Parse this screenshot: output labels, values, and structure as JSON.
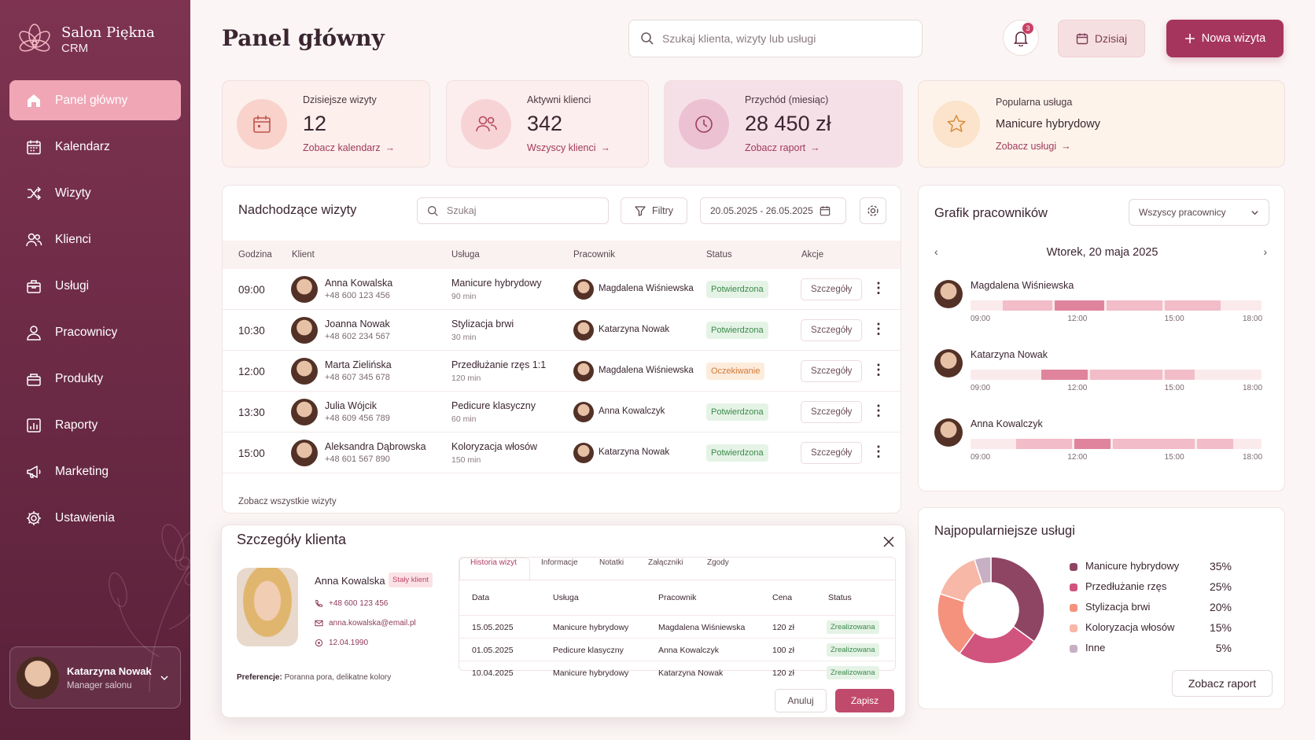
{
  "app": {
    "name": "Salon Piękna",
    "sub": "CRM"
  },
  "nav": [
    {
      "label": "Panel główny",
      "icon": "home-icon",
      "active": true
    },
    {
      "label": "Kalendarz",
      "icon": "calendar-icon"
    },
    {
      "label": "Wizyty",
      "icon": "shuffle-icon"
    },
    {
      "label": "Klienci",
      "icon": "users-icon"
    },
    {
      "label": "Usługi",
      "icon": "box-icon"
    },
    {
      "label": "Pracownicy",
      "icon": "user-icon"
    },
    {
      "label": "Produkty",
      "icon": "package-icon"
    },
    {
      "label": "Raporty",
      "icon": "chart-icon"
    },
    {
      "label": "Marketing",
      "icon": "megaphone-icon"
    },
    {
      "label": "Ustawienia",
      "icon": "gear-icon"
    }
  ],
  "user": {
    "name": "Katarzyna Nowak",
    "role": "Manager salonu"
  },
  "header": {
    "title": "Panel główny",
    "search_placeholder": "Szukaj klienta, wizyty lub usługi",
    "notifications": "3",
    "today_label": "Dzisiaj",
    "new_visit_label": "Nowa wizyta"
  },
  "kpis": [
    {
      "label": "Dzisiejsze wizyty",
      "value": "12",
      "link": "Zobacz kalendarz",
      "icon": "calendar-icon"
    },
    {
      "label": "Aktywni klienci",
      "value": "342",
      "link": "Wszyscy klienci",
      "icon": "users-icon"
    },
    {
      "label": "Przychód (miesiąc)",
      "value": "28 450 zł",
      "link": "Zobacz raport",
      "icon": "clock-icon"
    },
    {
      "label": "Popularna usługa",
      "value": "Manicure hybrydowy",
      "link": "Zobacz usługi",
      "icon": "star-icon"
    }
  ],
  "upcoming": {
    "title": "Nadchodzące wizyty",
    "search_placeholder": "Szukaj",
    "filters_label": "Filtry",
    "date_range": "20.05.2025 - 26.05.2025",
    "columns": [
      "Godzina",
      "Klient",
      "Usługa",
      "Pracownik",
      "Status",
      "Akcje"
    ],
    "details_label": "Szczegóły",
    "see_all": "Zobacz wszystkie wizyty",
    "rows": [
      {
        "time": "09:00",
        "client": "Anna Kowalska",
        "phone": "+48 600 123 456",
        "service": "Manicure hybrydowy",
        "duration": "90 min",
        "employee": "Magdalena Wiśniewska",
        "status": "Potwierdzona",
        "status_type": "ok"
      },
      {
        "time": "10:30",
        "client": "Joanna Nowak",
        "phone": "+48 602 234 567",
        "service": "Stylizacja brwi",
        "duration": "30 min",
        "employee": "Katarzyna Nowak",
        "status": "Potwierdzona",
        "status_type": "ok"
      },
      {
        "time": "12:00",
        "client": "Marta Zielińska",
        "phone": "+48 607 345 678",
        "service": "Przedłużanie rzęs 1:1",
        "duration": "120 min",
        "employee": "Magdalena Wiśniewska",
        "status": "Oczekiwanie",
        "status_type": "wait"
      },
      {
        "time": "13:30",
        "client": "Julia Wójcik",
        "phone": "+48 609 456 789",
        "service": "Pedicure klasyczny",
        "duration": "60 min",
        "employee": "Anna Kowalczyk",
        "status": "Potwierdzona",
        "status_type": "ok"
      },
      {
        "time": "15:00",
        "client": "Aleksandra Dąbrowska",
        "phone": "+48 601 567 890",
        "service": "Koloryzacja włosów",
        "duration": "150 min",
        "employee": "Katarzyna Nowak",
        "status": "Potwierdzona",
        "status_type": "ok"
      }
    ]
  },
  "schedule": {
    "title": "Grafik pracowników",
    "filter": "Wszyscy pracownicy",
    "date": "Wtorek, 20 maja 2025",
    "ticks": [
      "09:00",
      "12:00",
      "15:00",
      "18:00"
    ],
    "employees": [
      {
        "name": "Magdalena Wiśniewska",
        "blocks": [
          [
            10.0,
            11.6,
            "light"
          ],
          [
            11.6,
            13.2,
            "dark"
          ],
          [
            13.2,
            15.0,
            "light"
          ],
          [
            15.0,
            16.8,
            "light"
          ]
        ]
      },
      {
        "name": "Katarzyna Nowak",
        "blocks": [
          [
            11.2,
            12.7,
            "dark"
          ],
          [
            12.7,
            15.0,
            "light"
          ],
          [
            15.0,
            16.0,
            "light"
          ]
        ]
      },
      {
        "name": "Anna Kowalczyk",
        "blocks": [
          [
            10.4,
            12.2,
            "light"
          ],
          [
            12.2,
            13.4,
            "dark"
          ],
          [
            13.4,
            16.0,
            "light"
          ],
          [
            16.0,
            17.2,
            "light"
          ]
        ]
      }
    ]
  },
  "popular": {
    "title": "Najpopularniejsze usługi",
    "button": "Zobacz raport",
    "items": [
      {
        "label": "Manicure hybrydowy",
        "pct": "35%",
        "value": 35,
        "color": "#8e4563"
      },
      {
        "label": "Przedłużanie rzęs",
        "pct": "25%",
        "value": 25,
        "color": "#d1547e"
      },
      {
        "label": "Stylizacja brwi",
        "pct": "20%",
        "value": 20,
        "color": "#f4927e"
      },
      {
        "label": "Koloryzacja włosów",
        "pct": "15%",
        "value": 15,
        "color": "#f7b8a8"
      },
      {
        "label": "Inne",
        "pct": "5%",
        "value": 5,
        "color": "#c7afc4"
      }
    ]
  },
  "client_detail": {
    "title": "Szczegóły klienta",
    "name": "Anna Kowalska",
    "tag": "Stały klient",
    "phone": "+48 600 123 456",
    "email": "anna.kowalska@email.pl",
    "birth": "12.04.1990",
    "pref_label": "Preferencje:",
    "pref_value": "Poranna pora, delikatne kolory",
    "tabs": [
      "Historia wizyt",
      "Informacje",
      "Notatki",
      "Załączniki",
      "Zgody"
    ],
    "columns": [
      "Data",
      "Usługa",
      "Pracownik",
      "Cena",
      "Status"
    ],
    "rows": [
      {
        "date": "15.05.2025",
        "service": "Manicure hybrydowy",
        "employee": "Magdalena Wiśniewska",
        "price": "120 zł",
        "status": "Zrealizowana"
      },
      {
        "date": "01.05.2025",
        "service": "Pedicure klasyczny",
        "employee": "Anna Kowalczyk",
        "price": "100 zł",
        "status": "Zrealizowana"
      },
      {
        "date": "10.04.2025",
        "service": "Manicure hybrydowy",
        "employee": "Katarzyna Nowak",
        "price": "120 zł",
        "status": "Zrealizowana"
      }
    ],
    "cancel_label": "Anuluj",
    "save_label": "Zapisz"
  },
  "colors": {
    "accent": "#a6355e",
    "sidebar": "#6a2944",
    "active_nav": "#f0a6b4"
  }
}
